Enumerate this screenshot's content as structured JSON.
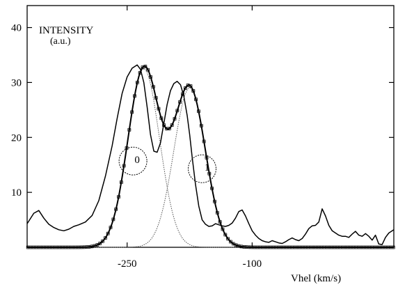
{
  "chart_data": {
    "type": "line",
    "title": "",
    "ylabel": "INTENSITY",
    "ylabel_unit": "(a.u.)",
    "xlabel": "Vhel (km/s)",
    "xlim": [
      -370,
      70
    ],
    "ylim": [
      0,
      44
    ],
    "x_ticks": [
      -250,
      -100
    ],
    "x_tick_labels": [
      "-250",
      "-100"
    ],
    "y_ticks": [
      10,
      20,
      30,
      40
    ],
    "y_tick_labels": [
      "10",
      "20",
      "30",
      "40"
    ],
    "grid": false,
    "legend": "none",
    "component_labels": [
      "0",
      "1"
    ],
    "components": [
      {
        "label": "0",
        "center": -230,
        "amplitude": 32.5,
        "width": 19
      },
      {
        "label": "1",
        "center": -175,
        "amplitude": 29.0,
        "width": 19
      }
    ],
    "series": [
      {
        "style": "solid",
        "x": [
          -370,
          -362,
          -356,
          -350,
          -344,
          -338,
          -332,
          -326,
          -320,
          -314,
          -308,
          -300,
          -292,
          -284,
          -276,
          -268,
          -262,
          -256,
          -250,
          -244,
          -238,
          -234,
          -230,
          -226,
          -222,
          -218,
          -214,
          -210,
          -206,
          -202,
          -198,
          -194,
          -190,
          -186,
          -182,
          -178,
          -175,
          -172,
          -168,
          -164,
          -160,
          -156,
          -152,
          -148,
          -144,
          -140,
          -136,
          -132,
          -128,
          -124,
          -120,
          -116,
          -112,
          -108,
          -104,
          -100,
          -96,
          -92,
          -88,
          -84,
          -80,
          -76,
          -72,
          -68,
          -64,
          -60,
          -56,
          -52,
          -48,
          -44,
          -40,
          -36,
          -32,
          -28,
          -24,
          -20,
          -16,
          -12,
          -8,
          -4,
          0,
          4,
          8,
          12,
          16,
          20,
          24,
          28,
          32,
          36,
          40,
          44,
          48,
          52,
          56,
          60,
          64,
          70
        ],
        "y": [
          4.3,
          6.2,
          6.7,
          5.3,
          4.2,
          3.6,
          3.2,
          3.0,
          3.3,
          3.8,
          4.1,
          4.6,
          5.8,
          8.5,
          13.0,
          18.5,
          23.5,
          28.0,
          31.0,
          32.6,
          33.2,
          32.4,
          30.0,
          25.5,
          20.5,
          17.5,
          17.3,
          19.0,
          22.5,
          26.0,
          28.5,
          29.8,
          30.2,
          29.6,
          27.5,
          24.0,
          20.5,
          16.5,
          11.5,
          7.5,
          5.0,
          4.2,
          3.8,
          3.9,
          4.3,
          4.1,
          3.9,
          3.8,
          4.0,
          4.4,
          5.3,
          6.5,
          6.8,
          5.7,
          4.3,
          3.0,
          2.2,
          1.6,
          1.2,
          1.0,
          0.9,
          1.2,
          1.0,
          0.8,
          0.7,
          1.0,
          1.4,
          1.7,
          1.4,
          1.2,
          1.6,
          2.4,
          3.4,
          3.9,
          4.0,
          4.6,
          7.0,
          5.7,
          4.0,
          3.0,
          2.6,
          2.2,
          2.0,
          2.0,
          1.8,
          2.4,
          2.9,
          2.2,
          2.0,
          2.5,
          2.0,
          1.3,
          2.2,
          0.6,
          0.5,
          1.8,
          2.6,
          3.2
        ]
      }
    ]
  }
}
